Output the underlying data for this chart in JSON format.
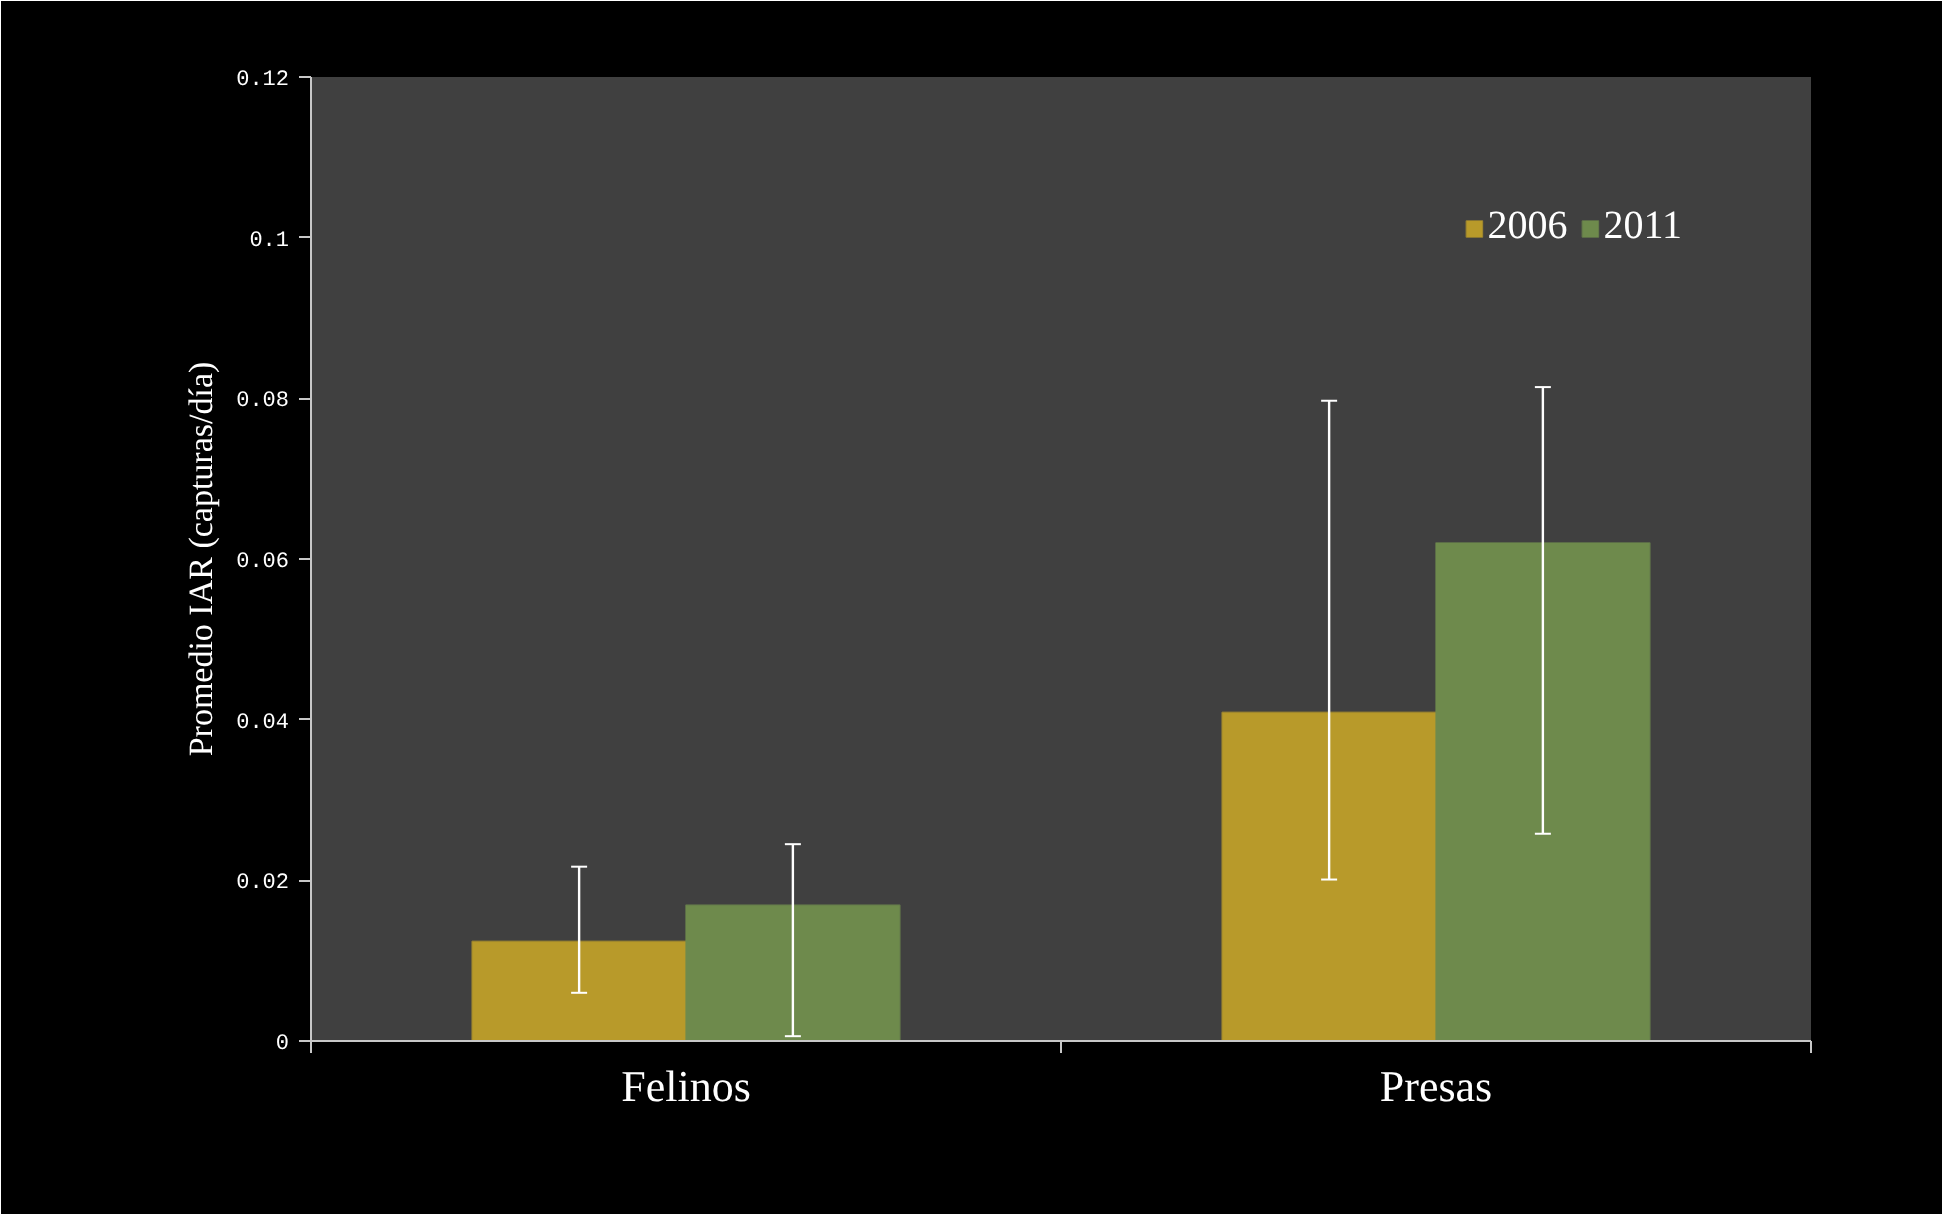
{
  "chart_data": {
    "type": "bar",
    "ylabel": "Promedio IAR (capturas/día)",
    "categories": [
      "Felinos",
      "Presas"
    ],
    "series": [
      {
        "name": "2006",
        "color": "#b89a2a",
        "values": [
          0.0124,
          0.0409
        ],
        "errors": [
          [
            0.006,
            0.0217
          ],
          [
            0.0201,
            0.0797
          ]
        ]
      },
      {
        "name": "2011",
        "color": "#6e8a4c",
        "values": [
          0.0169,
          0.062
        ],
        "errors": [
          [
            0.0006,
            0.0245
          ],
          [
            0.0258,
            0.0814
          ]
        ]
      }
    ],
    "ylim": [
      0,
      0.12
    ],
    "yticks": [
      0,
      0.02,
      0.04,
      0.06,
      0.08,
      0.1,
      0.12
    ],
    "grid": false,
    "legend": "top right"
  }
}
